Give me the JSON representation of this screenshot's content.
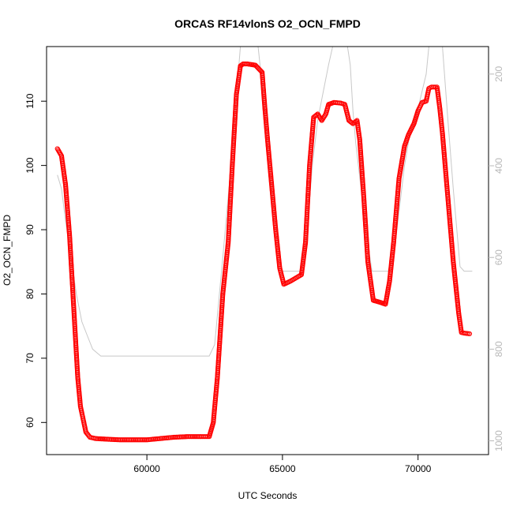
{
  "chart_data": {
    "type": "scatter",
    "title": "ORCAS RF14vlonS O2_OCN_FMPD",
    "xlabel": "UTC Seconds",
    "ylabel": "O2_OCN_FMPD",
    "xlim": [
      56300,
      72600
    ],
    "ylim": [
      55,
      118.5
    ],
    "x_ticks": [
      60000,
      65000,
      70000
    ],
    "y_ticks": [
      60,
      70,
      80,
      90,
      100,
      110
    ],
    "y2_ticks": [
      200,
      400,
      600,
      800,
      1000
    ],
    "y2lim_top_to_bottom": [
      140,
      1030
    ],
    "grid": false,
    "legend": "none",
    "colors": {
      "primary": "#ff0000",
      "secondary": "#c8c8c8",
      "axis": "#000000",
      "secondary_axis": "#b8b8b8"
    },
    "series": [
      {
        "marker": "open-circle",
        "axis": "left",
        "x": [
          56700,
          56850,
          57000,
          57150,
          57300,
          57450,
          57550,
          57650,
          57750,
          57900,
          58100,
          58500,
          59000,
          59500,
          60000,
          60500,
          61000,
          61500,
          62000,
          62300,
          62450,
          62600,
          62800,
          63000,
          63150,
          63300,
          63450,
          63550,
          63700,
          64000,
          64250,
          64350,
          64450,
          64600,
          64750,
          64900,
          65050,
          65300,
          65500,
          65700,
          65850,
          66000,
          66150,
          66300,
          66450,
          66600,
          66700,
          66900,
          67150,
          67300,
          67450,
          67600,
          67750,
          67850,
          68000,
          68150,
          68350,
          68600,
          68800,
          68950,
          69100,
          69300,
          69500,
          69650,
          69850,
          70000,
          70150,
          70300,
          70400,
          70500,
          70700,
          70800,
          70900,
          71100,
          71300,
          71500,
          71600,
          71700,
          71900
        ],
        "y": [
          102.6,
          101.5,
          97.0,
          89.0,
          78.0,
          67.0,
          62.5,
          60.5,
          58.5,
          57.7,
          57.5,
          57.4,
          57.3,
          57.3,
          57.3,
          57.5,
          57.7,
          57.8,
          57.8,
          57.8,
          60.0,
          67.0,
          80.0,
          88.0,
          100.0,
          111.0,
          115.5,
          115.8,
          115.8,
          115.6,
          114.5,
          109.0,
          104.0,
          97.0,
          90.0,
          84.0,
          81.5,
          82.0,
          82.5,
          83.0,
          88.0,
          100.0,
          107.5,
          108.0,
          107.0,
          108.0,
          109.5,
          109.8,
          109.7,
          109.5,
          107.0,
          106.5,
          107.0,
          104.0,
          95.0,
          85.0,
          79.0,
          78.7,
          78.4,
          82.0,
          88.0,
          98.0,
          103.0,
          104.8,
          106.5,
          108.5,
          109.8,
          110.0,
          112.0,
          112.2,
          112.2,
          109.0,
          105.0,
          95.0,
          85.0,
          77.0,
          74.0,
          73.9,
          73.8
        ]
      },
      {
        "marker": "line",
        "axis": "right",
        "x": [
          56700,
          56850,
          57000,
          57200,
          57400,
          57600,
          57800,
          58000,
          58300,
          59000,
          60000,
          61000,
          62000,
          62300,
          62500,
          62800,
          63100,
          63300,
          63450,
          63800,
          63950,
          64100,
          64300,
          64500,
          64700,
          64900,
          65000,
          65300,
          65500,
          65700,
          65900,
          66100,
          66300,
          66500,
          66700,
          66850,
          67000,
          67250,
          67400,
          67500,
          67600,
          67700,
          67800,
          67900,
          68100,
          68300,
          68500,
          68700,
          68900,
          69100,
          69300,
          69500,
          69700,
          69900,
          70100,
          70300,
          70400,
          70550,
          70900,
          71100,
          71300,
          71550,
          71700,
          72000
        ],
        "y": [
          420,
          450,
          520,
          600,
          680,
          740,
          770,
          800,
          815,
          815,
          815,
          815,
          815,
          815,
          790,
          600,
          400,
          250,
          140,
          140,
          140,
          140,
          250,
          400,
          500,
          600,
          630,
          630,
          630,
          630,
          550,
          400,
          300,
          240,
          180,
          140,
          140,
          140,
          140,
          180,
          280,
          350,
          400,
          450,
          550,
          630,
          630,
          630,
          630,
          600,
          500,
          400,
          330,
          300,
          250,
          200,
          140,
          140,
          140,
          300,
          450,
          620,
          630,
          630
        ]
      }
    ]
  }
}
